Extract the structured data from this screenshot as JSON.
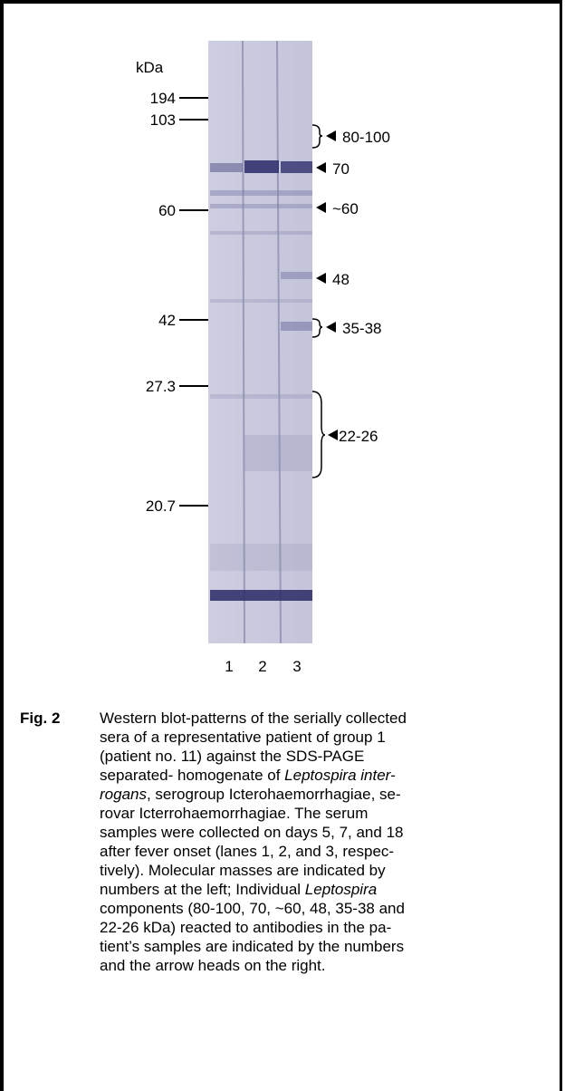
{
  "figure": {
    "unit_label": "kDa",
    "markers": [
      "194",
      "103",
      "60",
      "42",
      "27.3",
      "20.7"
    ],
    "lanes": [
      "1",
      "2",
      "3"
    ],
    "annotations": [
      "80-100",
      "70",
      "~60",
      "48",
      "35-38",
      "22-26"
    ],
    "caption": {
      "label": "Fig. 2",
      "lines": [
        [
          {
            "text": "Western blot-patterns of the serially collected",
            "italic": false
          }
        ],
        [
          {
            "text": "sera of a representative patient of group 1",
            "italic": false
          }
        ],
        [
          {
            "text": "(patient no. 11) against the SDS-PAGE",
            "italic": false
          }
        ],
        [
          {
            "text": "separated- homogenate of ",
            "italic": false
          },
          {
            "text": "Leptospira inter-",
            "italic": true
          }
        ],
        [
          {
            "text": "rogans",
            "italic": true
          },
          {
            "text": ", serogroup Icterohaemorrhagiae, se-",
            "italic": false
          }
        ],
        [
          {
            "text": "rovar Icterrohaemorrhagiae.  The serum",
            "italic": false
          }
        ],
        [
          {
            "text": "samples were collected on days 5, 7, and 18",
            "italic": false
          }
        ],
        [
          {
            "text": "after fever onset (lanes 1, 2, and 3, respec-",
            "italic": false
          }
        ],
        [
          {
            "text": "tively).  Molecular masses are indicated by",
            "italic": false
          }
        ],
        [
          {
            "text": "numbers at the left; Individual ",
            "italic": false
          },
          {
            "text": "Leptospira",
            "italic": true
          }
        ],
        [
          {
            "text": "components (80-100, 70, ~60, 48, 35-38 and",
            "italic": false
          }
        ],
        [
          {
            "text": "22-26 kDa) reacted to antibodies in the pa-",
            "italic": false
          }
        ],
        [
          {
            "text": "tient’s samples are indicated by the numbers",
            "italic": false
          }
        ],
        [
          {
            "text": "and the arrow heads on the right.",
            "italic": false
          }
        ]
      ]
    }
  }
}
